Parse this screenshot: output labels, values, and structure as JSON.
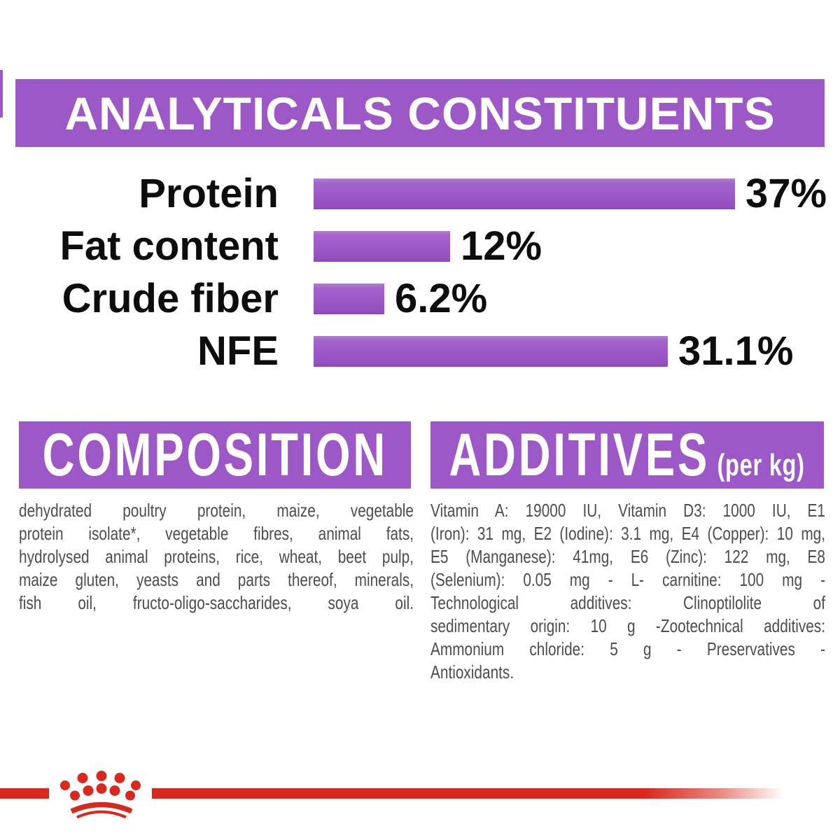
{
  "header": {
    "title": "ANALYTICALS CONSTITUENTS"
  },
  "chart_data": {
    "type": "bar",
    "orientation": "horizontal",
    "title": "ANALYTICALS CONSTITUENTS",
    "categories": [
      "Protein",
      "Fat content",
      "Crude fiber",
      "NFE"
    ],
    "values": [
      37,
      12,
      6.2,
      31.1
    ],
    "value_labels": [
      "37%",
      "12%",
      "6.2%",
      "31.1%"
    ],
    "unit": "%",
    "xlim": [
      0,
      45
    ],
    "grid": false,
    "legend": false,
    "bar_color": "#9b58c6"
  },
  "composition": {
    "heading": "COMPOSITION",
    "lines": [
      "dehydrated poultry protein, maize, vegetable",
      "protein isolate*, vegetable fibres, animal fats,",
      "hydrolysed animal proteins, rice, wheat, beet pulp,",
      "maize gluten, yeasts and parts thereof, minerals,",
      "fish oil, fructo-oligo-saccharides, soya oil."
    ],
    "justify_last_line": true
  },
  "additives": {
    "heading": "ADDITIVES",
    "heading_suffix": "(per kg)",
    "lines": [
      "Vitamin A: 19000 IU, Vitamin D3: 1000 IU, E1",
      "(Iron): 31 mg, E2 (Iodine): 3.1 mg, E4 (Copper): 10 mg,",
      "E5 (Manganese): 41mg, E6 (Zinc): 122 mg, E8",
      "(Selenium): 0.05 mg - L- carnitine: 100 mg -",
      "Technological additives: Clinoptilolite of",
      "sedimentary origin: 10 g -Zootechnical additives:",
      "Ammonium chloride: 5 g - Preservatives -",
      "Antioxidants."
    ],
    "justify_last_line": false
  },
  "icons": {
    "logo": "royal-canin-crown-logo"
  },
  "colors": {
    "purple": "#9b58c6",
    "red": "#da291c",
    "label_text": "#0d0d0d",
    "body_text": "#4d4d4d",
    "banner_text": "#ffffff"
  }
}
